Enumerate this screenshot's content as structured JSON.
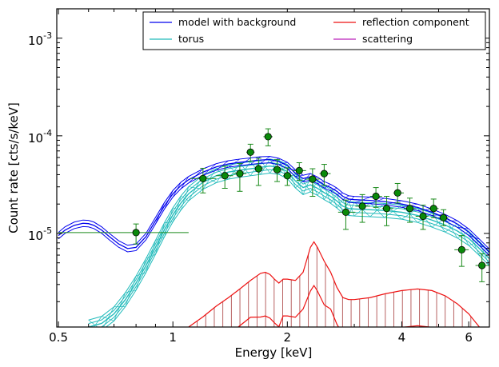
{
  "chart_data": {
    "type": "line",
    "title": "",
    "xlabel": "Energy [keV]",
    "ylabel": "Count rate [cts/s/keV]",
    "xscale": "log",
    "yscale": "log",
    "xlim": [
      0.495,
      6.8
    ],
    "ylim": [
      1.1e-06,
      0.002
    ],
    "x_ticks": [
      {
        "value": 0.5,
        "label": "0.5"
      },
      {
        "value": 1,
        "label": "1"
      },
      {
        "value": 2,
        "label": "2"
      },
      {
        "value": 4,
        "label": "4"
      },
      {
        "value": 6,
        "label": "6"
      }
    ],
    "y_ticks": [
      {
        "value": 1e-05,
        "mantissa": "10",
        "exponent": "-5"
      },
      {
        "value": 0.0001,
        "mantissa": "10",
        "exponent": "-4"
      },
      {
        "value": 0.001,
        "mantissa": "10",
        "exponent": "-3"
      }
    ],
    "grid": false,
    "legend_placement": "top-right",
    "legend": [
      {
        "label": "model with background",
        "color": "#0000ee"
      },
      {
        "label": "reflection component",
        "color": "#ee1111"
      },
      {
        "label": "torus",
        "color": "#22bbbb"
      },
      {
        "label": "scattering",
        "color": "#bb22bb"
      }
    ],
    "series": [
      {
        "role": "model with background",
        "color": "#0000ee",
        "x": [
          0.5,
          0.52,
          0.55,
          0.58,
          0.6,
          0.62,
          0.65,
          0.68,
          0.72,
          0.76,
          0.8,
          0.85,
          0.9,
          0.95,
          1.0,
          1.05,
          1.1,
          1.2,
          1.3,
          1.4,
          1.5,
          1.6,
          1.7,
          1.8,
          1.9,
          2.0,
          2.1,
          2.2,
          2.3,
          2.4,
          2.5,
          2.6,
          2.7,
          2.8,
          2.9,
          3.0,
          3.3,
          3.6,
          4.0,
          4.4,
          4.8,
          5.2,
          5.6,
          6.0,
          6.4,
          6.8
        ],
        "y": [
          9.5e-06,
          1.08e-05,
          1.21e-05,
          1.27e-05,
          1.26e-05,
          1.21e-05,
          1.08e-05,
          9.3e-06,
          7.8e-06,
          7e-06,
          7.2e-06,
          9.3e-06,
          1.35e-05,
          1.92e-05,
          2.55e-05,
          3.1e-05,
          3.55e-05,
          4.25e-05,
          4.8e-05,
          5.15e-05,
          5.35e-05,
          5.5e-05,
          5.65e-05,
          5.7e-05,
          5.45e-05,
          4.95e-05,
          4.15e-05,
          3.65e-05,
          3.8e-05,
          3.5e-05,
          3.15e-05,
          2.95e-05,
          2.7e-05,
          2.4e-05,
          2.25e-05,
          2.22e-05,
          2.18e-05,
          2.12e-05,
          2e-05,
          1.85e-05,
          1.65e-05,
          1.45e-05,
          1.25e-05,
          1.03e-05,
          8.1e-06,
          6.4e-06
        ],
        "band_factor": 1.08
      },
      {
        "role": "torus",
        "color": "#22bbbb",
        "x": [
          0.6,
          0.65,
          0.7,
          0.75,
          0.8,
          0.85,
          0.9,
          0.95,
          1.0,
          1.05,
          1.1,
          1.2,
          1.3,
          1.4,
          1.5,
          1.6,
          1.7,
          1.8,
          1.9,
          2.0,
          2.1,
          2.2,
          2.3,
          2.4,
          2.5,
          2.6,
          2.7,
          2.8,
          2.9,
          3.0,
          3.3,
          3.6,
          4.0,
          4.4,
          4.8,
          5.2,
          5.6,
          6.0,
          6.4,
          6.8
        ],
        "y": [
          1.1e-06,
          1.2e-06,
          1.5e-06,
          2.1e-06,
          3.1e-06,
          4.7e-06,
          7.2e-06,
          1.09e-05,
          1.55e-05,
          2.05e-05,
          2.55e-05,
          3.35e-05,
          3.9e-05,
          4.25e-05,
          4.45e-05,
          4.6e-05,
          4.75e-05,
          4.9e-05,
          4.75e-05,
          4.3e-05,
          3.45e-05,
          2.95e-05,
          3.15e-05,
          2.9e-05,
          2.62e-05,
          2.4e-05,
          2.15e-05,
          1.9e-05,
          1.8e-05,
          1.78e-05,
          1.75e-05,
          1.72e-05,
          1.65e-05,
          1.53e-05,
          1.37e-05,
          1.22e-05,
          1.06e-05,
          8.9e-06,
          7e-06,
          5.5e-06
        ],
        "band_factor": 1.18
      },
      {
        "role": "reflection component",
        "color": "#ee1111",
        "x": [
          1.1,
          1.2,
          1.3,
          1.4,
          1.5,
          1.6,
          1.7,
          1.75,
          1.8,
          1.85,
          1.9,
          1.95,
          2.0,
          2.1,
          2.2,
          2.3,
          2.35,
          2.4,
          2.5,
          2.6,
          2.7,
          2.8,
          2.9,
          3.0,
          3.3,
          3.6,
          4.0,
          4.4,
          4.8,
          5.2,
          5.6,
          6.0,
          6.4
        ],
        "y": [
          1.1e-06,
          1.4e-06,
          1.8e-06,
          2.2e-06,
          2.7e-06,
          3.3e-06,
          3.9e-06,
          4e-06,
          3.8e-06,
          3.4e-06,
          3.1e-06,
          3.4e-06,
          3.4e-06,
          3.3e-06,
          4e-06,
          7.2e-06,
          8.2e-06,
          7.2e-06,
          5.2e-06,
          4e-06,
          2.8e-06,
          2.2e-06,
          2.1e-06,
          2.1e-06,
          2.2e-06,
          2.4e-06,
          2.6e-06,
          2.7e-06,
          2.6e-06,
          2.3e-06,
          1.9e-06,
          1.5e-06,
          1.1e-06
        ],
        "second_y_factor": 0.42
      }
    ],
    "data_points": [
      {
        "x": 0.8,
        "y": 1.02e-05,
        "xerr": [
          0.5,
          1.1
        ],
        "yerr": [
          7.8e-06,
          1.25e-05
        ]
      },
      {
        "x": 1.2,
        "y": 3.65e-05,
        "xerr": [
          1.11,
          1.3
        ],
        "yerr": [
          2.6e-05,
          4.65e-05
        ]
      },
      {
        "x": 1.37,
        "y": 3.9e-05,
        "xerr": [
          1.3,
          1.44
        ],
        "yerr": [
          2.9e-05,
          4.9e-05
        ]
      },
      {
        "x": 1.5,
        "y": 4.1e-05,
        "xerr": [
          1.44,
          1.56
        ],
        "yerr": [
          2.7e-05,
          5.2e-05
        ]
      },
      {
        "x": 1.6,
        "y": 6.8e-05,
        "xerr": [
          1.56,
          1.64
        ],
        "yerr": [
          5.5e-05,
          8.2e-05
        ]
      },
      {
        "x": 1.68,
        "y": 4.6e-05,
        "xerr": [
          1.64,
          1.73
        ],
        "yerr": [
          3.1e-05,
          5.9e-05
        ]
      },
      {
        "x": 1.78,
        "y": 9.8e-05,
        "xerr": [
          1.73,
          1.83
        ],
        "yerr": [
          7.9e-05,
          0.000118
        ]
      },
      {
        "x": 1.88,
        "y": 4.5e-05,
        "xerr": [
          1.83,
          1.95
        ],
        "yerr": [
          3.4e-05,
          5.7e-05
        ]
      },
      {
        "x": 2.0,
        "y": 3.9e-05,
        "xerr": [
          1.95,
          2.06
        ],
        "yerr": [
          3.1e-05,
          4.7e-05
        ]
      },
      {
        "x": 2.15,
        "y": 4.4e-05,
        "xerr": [
          2.06,
          2.24
        ],
        "yerr": [
          3.5e-05,
          5.3e-05
        ]
      },
      {
        "x": 2.33,
        "y": 3.6e-05,
        "xerr": [
          2.24,
          2.43
        ],
        "yerr": [
          2.4e-05,
          4.6e-05
        ]
      },
      {
        "x": 2.5,
        "y": 4.1e-05,
        "xerr": [
          2.43,
          2.6
        ],
        "yerr": [
          3.1e-05,
          5.1e-05
        ]
      },
      {
        "x": 2.85,
        "y": 1.65e-05,
        "xerr": [
          2.72,
          3.02
        ],
        "yerr": [
          1.1e-05,
          2.2e-05
        ]
      },
      {
        "x": 3.15,
        "y": 1.9e-05,
        "xerr": [
          3.02,
          3.3
        ],
        "yerr": [
          1.3e-05,
          2.5e-05
        ]
      },
      {
        "x": 3.42,
        "y": 2.4e-05,
        "xerr": [
          3.3,
          3.55
        ],
        "yerr": [
          1.85e-05,
          2.95e-05
        ]
      },
      {
        "x": 3.65,
        "y": 1.8e-05,
        "xerr": [
          3.55,
          3.8
        ],
        "yerr": [
          1.2e-05,
          2.4e-05
        ]
      },
      {
        "x": 3.9,
        "y": 2.6e-05,
        "xerr": [
          3.8,
          4.05
        ],
        "yerr": [
          2.05e-05,
          3.25e-05
        ]
      },
      {
        "x": 4.2,
        "y": 1.8e-05,
        "xerr": [
          4.05,
          4.35
        ],
        "yerr": [
          1.3e-05,
          2.3e-05
        ]
      },
      {
        "x": 4.55,
        "y": 1.5e-05,
        "xerr": [
          4.35,
          4.7
        ],
        "yerr": [
          1.1e-05,
          1.95e-05
        ]
      },
      {
        "x": 4.85,
        "y": 1.8e-05,
        "xerr": [
          4.7,
          5.0
        ],
        "yerr": [
          1.45e-05,
          2.25e-05
        ]
      },
      {
        "x": 5.15,
        "y": 1.45e-05,
        "xerr": [
          5.0,
          5.3
        ],
        "yerr": [
          1.2e-05,
          1.75e-05
        ]
      },
      {
        "x": 5.75,
        "y": 6.8e-06,
        "xerr": [
          5.5,
          6.0
        ],
        "yerr": [
          4.6e-06,
          9.5e-06
        ]
      },
      {
        "x": 6.5,
        "y": 4.7e-06,
        "xerr": [
          6.25,
          6.8
        ],
        "yerr": [
          3.2e-06,
          6.2e-06
        ]
      }
    ]
  }
}
